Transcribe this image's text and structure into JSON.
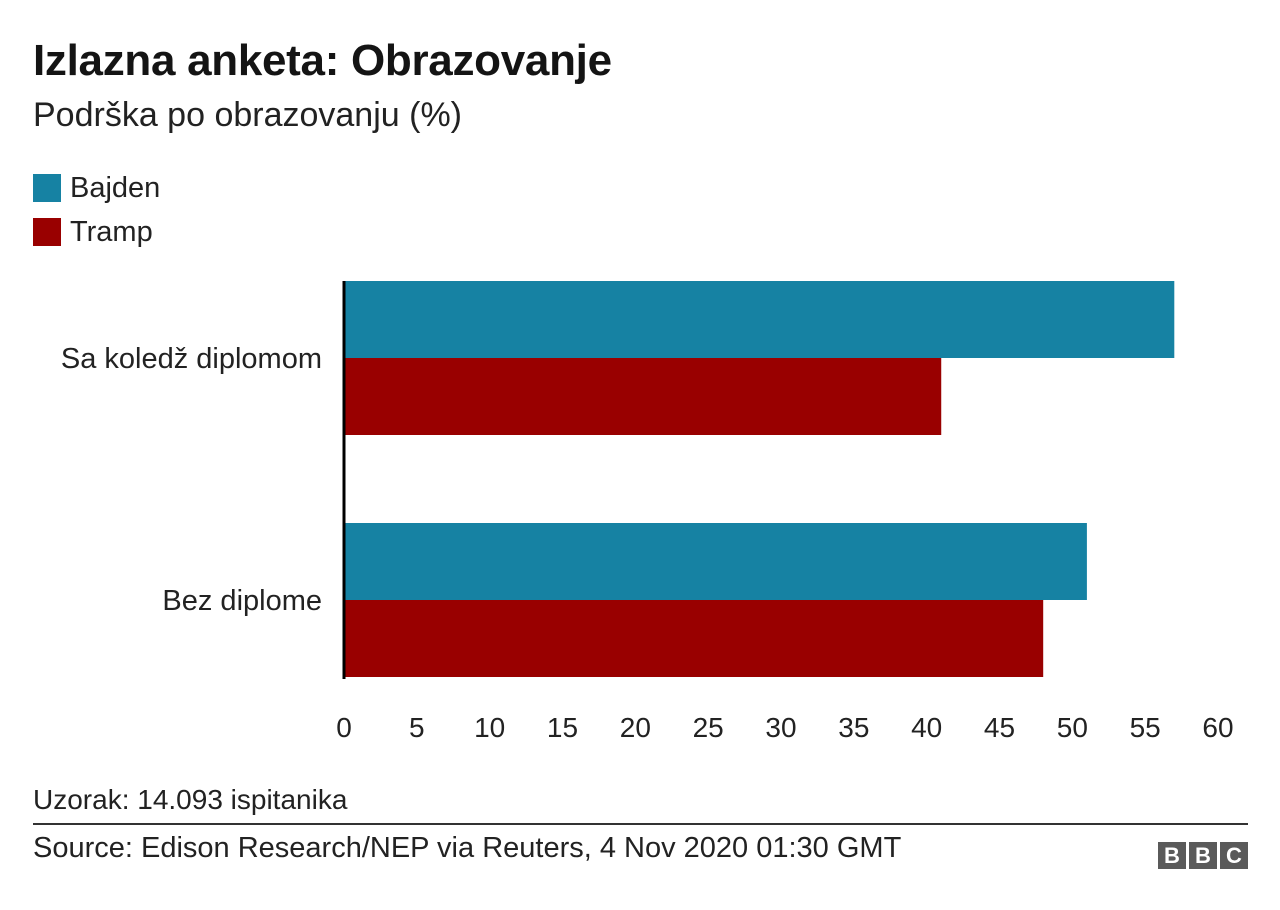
{
  "header": {
    "title": "Izlazna anketa: Obrazovanje",
    "subtitle": "Podrška po obrazovanju (%)"
  },
  "legend": [
    {
      "label": "Bajden",
      "color": "#1682a3"
    },
    {
      "label": "Tramp",
      "color": "#990000"
    }
  ],
  "chart_data": {
    "type": "bar",
    "orientation": "horizontal",
    "title": "Izlazna anketa: Obrazovanje",
    "subtitle": "Podrška po obrazovanju (%)",
    "categories": [
      "Sa koledž diplomom",
      "Bez diplome"
    ],
    "series": [
      {
        "name": "Bajden",
        "color": "#1682a3",
        "values": [
          57,
          51
        ]
      },
      {
        "name": "Tramp",
        "color": "#990000",
        "values": [
          41,
          48
        ]
      }
    ],
    "xlim": [
      0,
      60
    ],
    "xticks": [
      "0",
      "5",
      "10",
      "15",
      "20",
      "25",
      "30",
      "35",
      "40",
      "45",
      "50",
      "55",
      "60"
    ],
    "xlabel": "",
    "ylabel": "",
    "grid": false,
    "legend_position": "top-left"
  },
  "footer": {
    "note": "Uzorak: 14.093 ispitanika",
    "source": "Source: Edison Research/NEP via Reuters, 4 Nov 2020 01:30 GMT",
    "logo_letters": [
      "B",
      "B",
      "C"
    ]
  }
}
